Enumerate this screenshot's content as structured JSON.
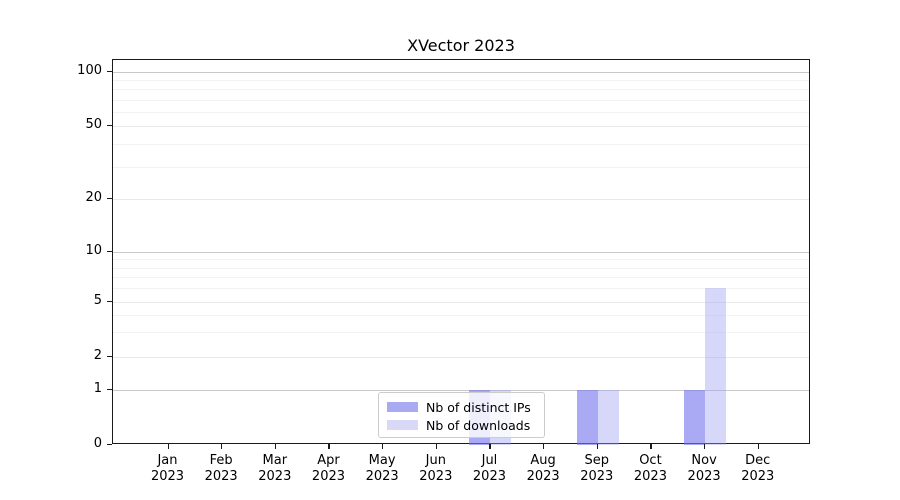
{
  "figure": {
    "title": "XVector 2023",
    "background_color": "#ffffff"
  },
  "chart_data": {
    "type": "bar",
    "title": "XVector 2023",
    "categories": [
      "Jan",
      "Feb",
      "Mar",
      "Apr",
      "May",
      "Jun",
      "Jul",
      "Aug",
      "Sep",
      "Oct",
      "Nov",
      "Dec"
    ],
    "category_year_line": "2023",
    "series": [
      {
        "name": "Nb of distinct IPs",
        "bar_color": "rgba(118,118,238,0.63)",
        "legend_color": "#aaaaf2",
        "values": [
          0,
          0,
          0,
          0,
          0,
          0,
          1,
          0,
          1,
          0,
          1,
          0
        ]
      },
      {
        "name": "Nb of downloads",
        "bar_color": "rgba(160,160,240,0.42)",
        "legend_color": "#d9d9f7",
        "values": [
          0,
          0,
          0,
          0,
          0,
          0,
          1,
          0,
          1,
          0,
          6,
          0
        ]
      }
    ],
    "xlabel": "",
    "ylabel": "",
    "y_axis": {
      "scale": "symlog-like",
      "tick_values": [
        0,
        1,
        2,
        5,
        10,
        20,
        50,
        100
      ],
      "major_grid_values": [
        1,
        10,
        100
      ],
      "mid_grid_values": [
        2,
        5,
        20,
        50
      ],
      "minor_grid_values": [
        3,
        4,
        6,
        7,
        8,
        9,
        30,
        40,
        60,
        70,
        80,
        90
      ],
      "range_top_label": 100,
      "range_bottom_label": 0
    },
    "legend": {
      "position": "lower center",
      "entries": [
        {
          "label": "Nb of distinct IPs",
          "color": "#aaaaf2"
        },
        {
          "label": "Nb of downloads",
          "color": "#d9d9f7"
        }
      ]
    },
    "grid": true
  }
}
